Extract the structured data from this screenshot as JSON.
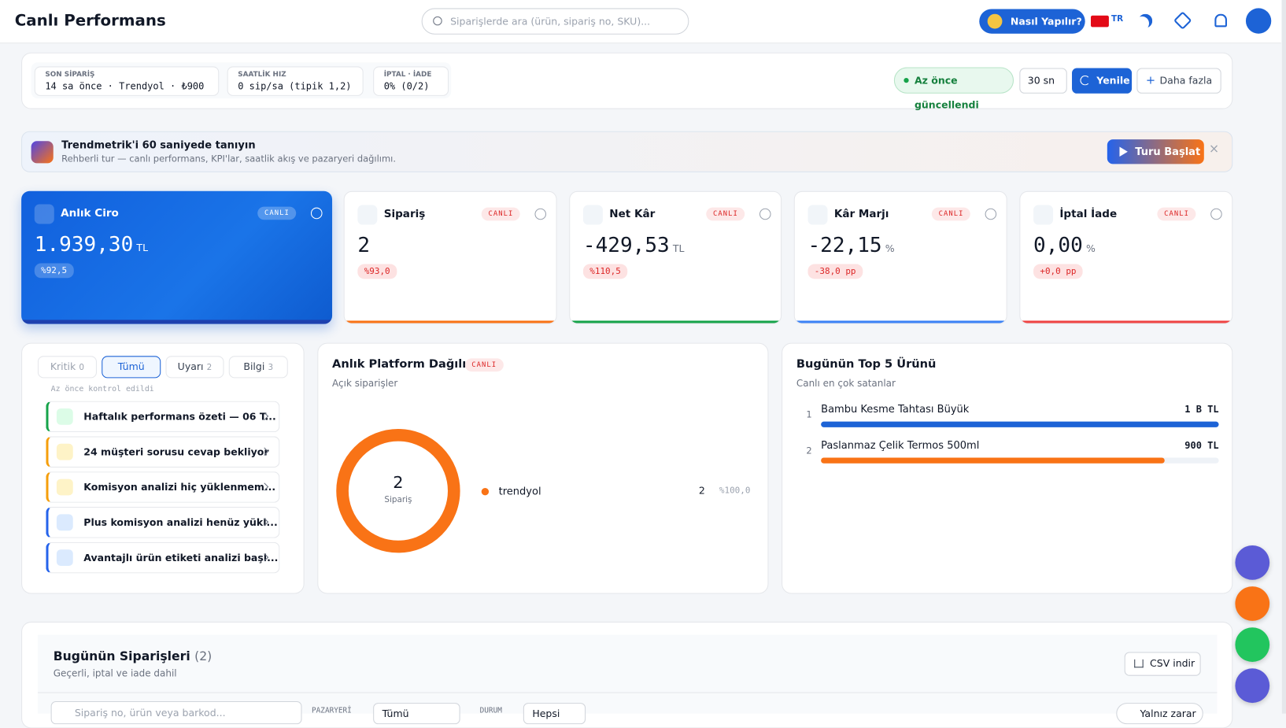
{
  "header": {
    "title": "Canlı Performans",
    "search_placeholder": "Siparişlerde ara (ürün, sipariş no, SKU)...",
    "help_button": "Nasıl Yapılır?",
    "language": "TR"
  },
  "status_bar": {
    "stats": [
      {
        "label": "SON SİPARİŞ",
        "value": "14 sa önce · Trendyol · ₺900"
      },
      {
        "label": "SAATLİK HIZ",
        "value": "0 sip/sa (tipik 1,2)"
      },
      {
        "label": "İPTAL · İADE",
        "value": "0% (0/2)"
      }
    ],
    "updated": "Az önce güncellendi",
    "interval": "30 sn",
    "refresh": "Yenile",
    "more": "Daha fazla"
  },
  "tour_banner": {
    "title": "Trendmetrik'i 60 saniyede tanıyın",
    "text": "Rehberli tur — canlı performans, KPI'lar, saatlik akış ve pazaryeri dağılımı.",
    "button": "Turu Başlat"
  },
  "kpis": [
    {
      "title": "Anlık Ciro",
      "badge": "CANLI",
      "value": "1.939,30",
      "unit": "TL",
      "change": "%92,5"
    },
    {
      "title": "Sipariş",
      "badge": "CANLI",
      "value": "2",
      "unit": "",
      "change": "%93,0"
    },
    {
      "title": "Net Kâr",
      "badge": "CANLI",
      "value": "-429,53",
      "unit": "TL",
      "change": "%110,5"
    },
    {
      "title": "Kâr Marjı",
      "badge": "CANLI",
      "value": "-22,15",
      "unit": "%",
      "change": "-38,0 pp"
    },
    {
      "title": "İptal İade",
      "badge": "CANLI",
      "value": "0,00",
      "unit": "%",
      "change": "+0,0 pp"
    }
  ],
  "alerts": {
    "tabs": [
      {
        "label": "Kritik",
        "count": "0"
      },
      {
        "label": "Tümü",
        "count": ""
      },
      {
        "label": "Uyarı",
        "count": "2"
      },
      {
        "label": "Bilgi",
        "count": "3"
      }
    ],
    "checked": "Az önce kontrol edildi",
    "items": [
      "Haftalık performans özeti — 06 T...",
      "24 müşteri sorusu cevap bekliyor",
      "Komisyon analizi hiç yüklenmem...",
      "Plus komisyon analizi henüz yükl...",
      "Avantajlı ürün etiketi analizi başl..."
    ]
  },
  "platform": {
    "title": "Anlık Platform Dağılımı",
    "badge": "CANLI",
    "subtitle": "Açık siparişler",
    "total": "2",
    "total_label": "Sipariş",
    "rows": [
      {
        "name": "trendyol",
        "count": "2",
        "share": "%100,0"
      }
    ]
  },
  "top_products": {
    "title": "Bugünün Top 5 Ürünü",
    "subtitle": "Canlı en çok satanlar",
    "items": [
      {
        "rank": "1",
        "name": "Bambu Kesme Tahtası Büyük",
        "value": "1 B TL"
      },
      {
        "rank": "2",
        "name": "Paslanmaz Çelik Termos 500ml",
        "value": "900 TL"
      }
    ]
  },
  "orders": {
    "title": "Bugünün Siparişleri",
    "count": "(2)",
    "subtitle": "Geçerli, iptal ve iade dahil",
    "csv": "CSV indir",
    "search_placeholder": "Sipariş no, ürün veya barkod...",
    "marketplace_label": "PAZARYERİ",
    "marketplace_value": "Tümü",
    "status_label": "DURUM",
    "status_value": "Hepsi",
    "loss_only": "Yalnız zarar"
  }
}
